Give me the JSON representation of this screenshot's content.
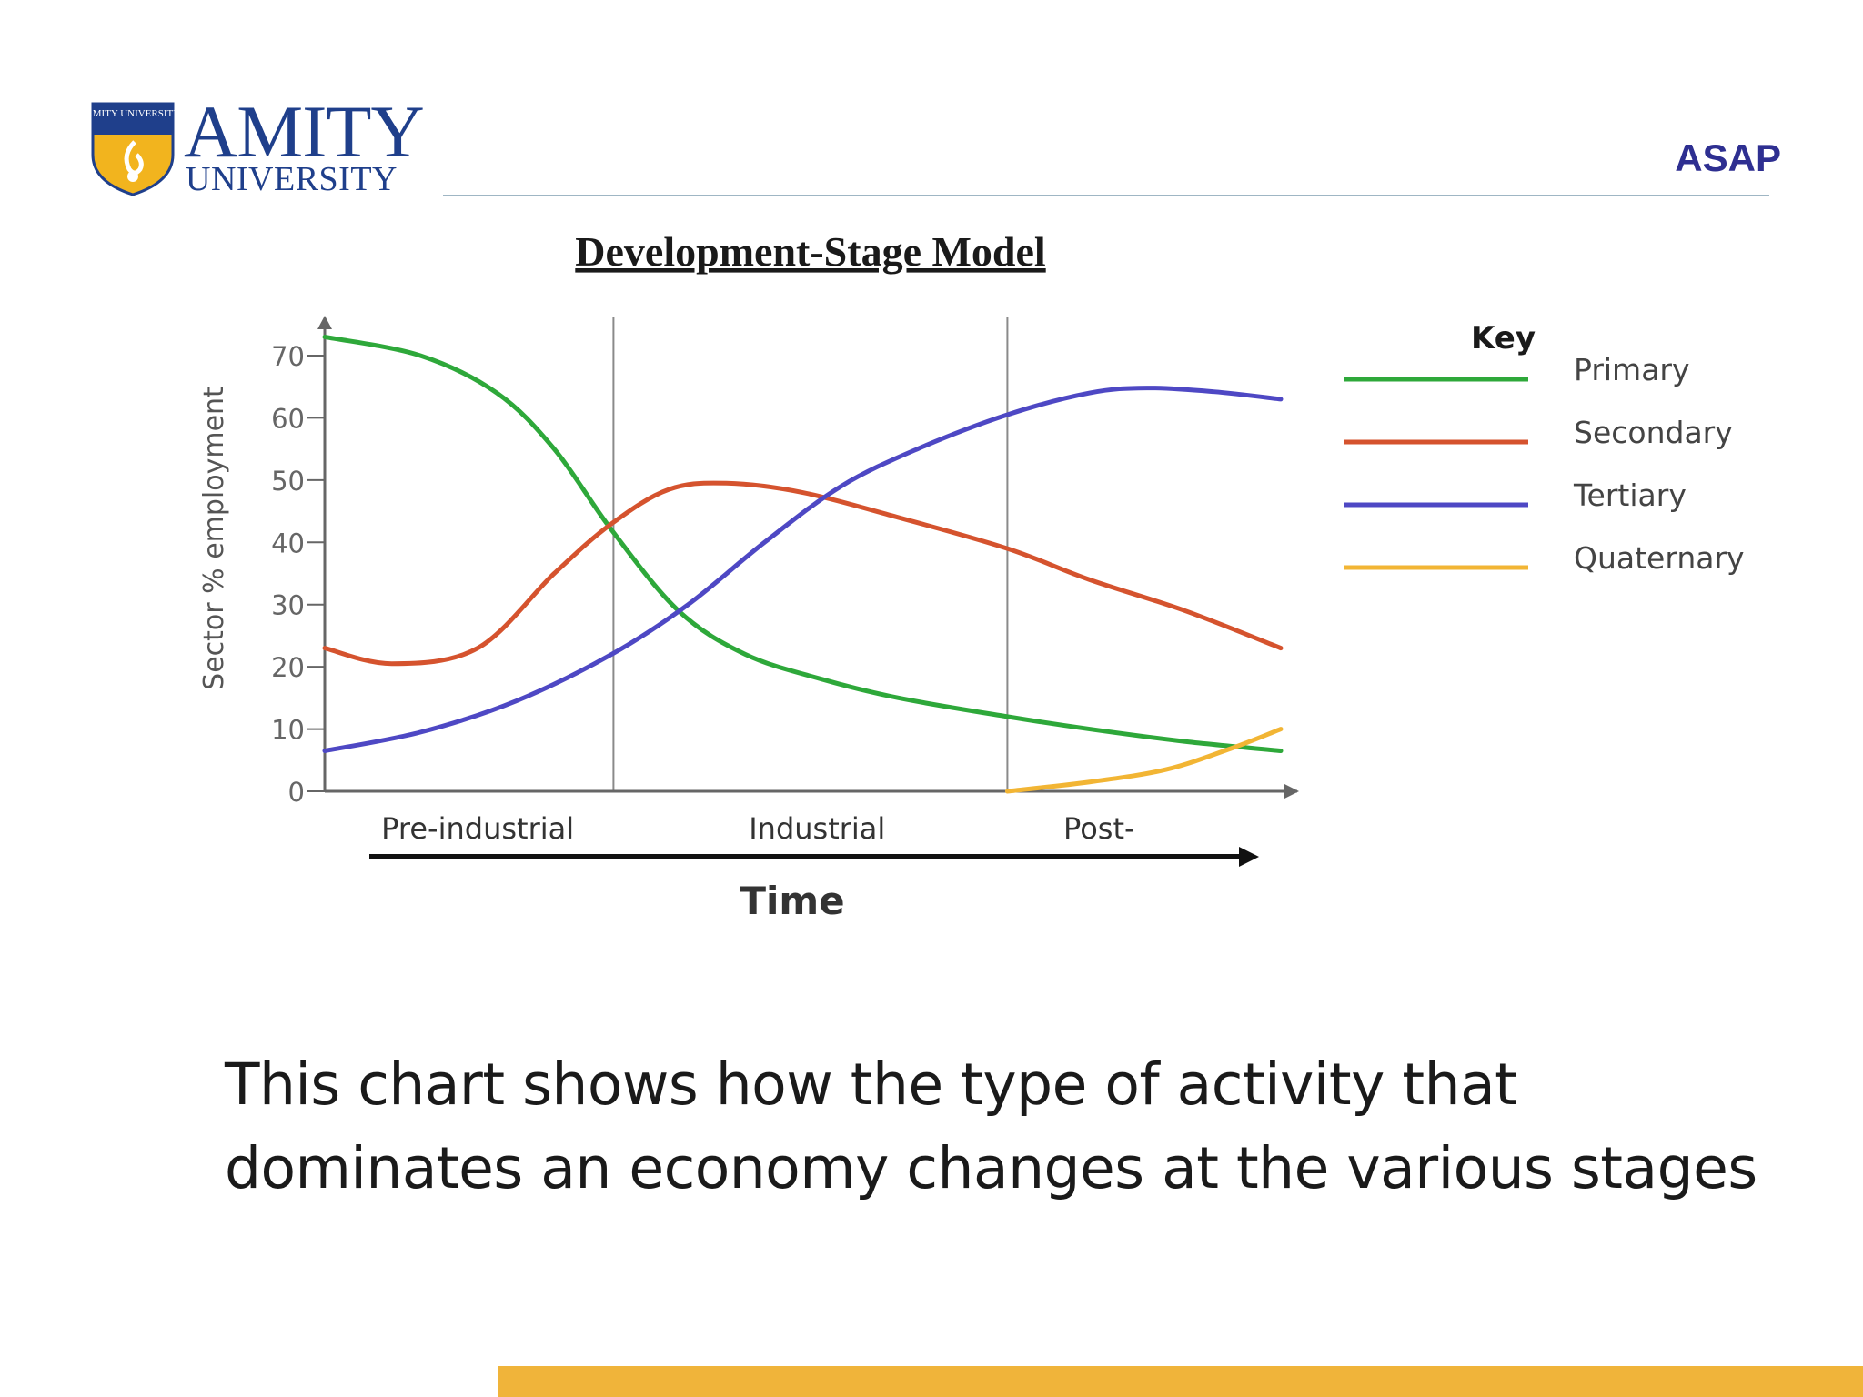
{
  "header": {
    "logo_badge_text": "AMITY UNIVERSITY",
    "logo_name": "AMITY",
    "logo_sub": "UNIVERSITY",
    "tag": "ASAP"
  },
  "caption": {
    "line1": "This chart shows how the type of activity that",
    "line2": "dominates an economy changes at the various stages"
  },
  "colors": {
    "primary": "#2ea83a",
    "secondary": "#d5532e",
    "tertiary": "#4e48c4",
    "quaternary": "#f2b534",
    "brand_blue": "#1f3f8b",
    "footer_gold": "#f0b43a"
  },
  "chart_data": {
    "type": "line",
    "title": "Development-Stage Model",
    "xlabel": "Time",
    "ylabel": "Sector % employment",
    "ylim": [
      0,
      75
    ],
    "xlim": [
      0,
      100
    ],
    "y_ticks": [
      "0",
      "10",
      "20",
      "30",
      "40",
      "50",
      "60",
      "70"
    ],
    "y_tick_values": [
      0,
      10,
      20,
      30,
      40,
      50,
      60,
      70
    ],
    "stages": [
      {
        "label": "Pre-industrial",
        "x_center": 16
      },
      {
        "label": "Industrial",
        "x_center": 51.5
      },
      {
        "label": "Post-",
        "x_center": 81
      }
    ],
    "stage_dividers_x": [
      30.2,
      71.4
    ],
    "legend_title": "Key",
    "series": [
      {
        "name": "Primary",
        "color_key": "primary",
        "points": [
          [
            0,
            73
          ],
          [
            10,
            70
          ],
          [
            18,
            64
          ],
          [
            24,
            55
          ],
          [
            30,
            42
          ],
          [
            37,
            29
          ],
          [
            44,
            22
          ],
          [
            52,
            18
          ],
          [
            60,
            15
          ],
          [
            71.4,
            12
          ],
          [
            80,
            10
          ],
          [
            90,
            8
          ],
          [
            100,
            6.5
          ]
        ]
      },
      {
        "name": "Secondary",
        "color_key": "secondary",
        "points": [
          [
            0,
            23
          ],
          [
            7,
            20.5
          ],
          [
            16,
            23
          ],
          [
            24,
            35
          ],
          [
            30,
            43
          ],
          [
            36,
            48.5
          ],
          [
            42,
            49.5
          ],
          [
            50,
            48
          ],
          [
            60,
            44
          ],
          [
            71.4,
            39
          ],
          [
            80,
            34
          ],
          [
            90,
            29
          ],
          [
            100,
            23
          ]
        ]
      },
      {
        "name": "Tertiary",
        "color_key": "tertiary",
        "points": [
          [
            0,
            6.5
          ],
          [
            10,
            9.5
          ],
          [
            20,
            14.5
          ],
          [
            30,
            22
          ],
          [
            38,
            30
          ],
          [
            46,
            40
          ],
          [
            54,
            49
          ],
          [
            62,
            55
          ],
          [
            71.4,
            60.5
          ],
          [
            80,
            64
          ],
          [
            86,
            64.8
          ],
          [
            93,
            64.2
          ],
          [
            100,
            63
          ]
        ]
      },
      {
        "name": "Quaternary",
        "color_key": "quaternary",
        "points": [
          [
            71.4,
            0
          ],
          [
            80,
            1.5
          ],
          [
            88,
            3.5
          ],
          [
            95,
            7
          ],
          [
            100,
            10
          ]
        ]
      }
    ]
  }
}
